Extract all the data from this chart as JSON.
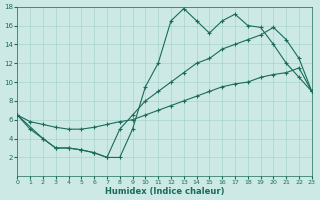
{
  "xlabel": "Humidex (Indice chaleur)",
  "bg_color": "#cce9e5",
  "line_color": "#1a6b5a",
  "grid_color": "#aad4cf",
  "xmin": 0,
  "xmax": 23,
  "ymin": 0,
  "ymax": 18,
  "yticks": [
    2,
    4,
    6,
    8,
    10,
    12,
    14,
    16,
    18
  ],
  "xticks": [
    0,
    1,
    2,
    3,
    4,
    5,
    6,
    7,
    8,
    9,
    10,
    11,
    12,
    13,
    14,
    15,
    16,
    17,
    18,
    19,
    20,
    21,
    22,
    23
  ],
  "line1_x": [
    0,
    1,
    2,
    3,
    4,
    5,
    6,
    7,
    8,
    9,
    10,
    11,
    12,
    13,
    14,
    15,
    16,
    17,
    18,
    19,
    20,
    21,
    22,
    23
  ],
  "line1_y": [
    6.5,
    5.0,
    4.0,
    3.0,
    3.0,
    2.8,
    2.5,
    2.0,
    2.0,
    5.0,
    9.5,
    12.0,
    16.5,
    17.8,
    16.5,
    15.2,
    16.5,
    17.2,
    16.0,
    15.8,
    14.0,
    12.0,
    10.5,
    9.0
  ],
  "line2_x": [
    0,
    1,
    2,
    3,
    4,
    5,
    6,
    7,
    8,
    9,
    10,
    11,
    12,
    13,
    14,
    15,
    16,
    17,
    18,
    19,
    20,
    21,
    22,
    23
  ],
  "line2_y": [
    6.5,
    5.8,
    5.5,
    5.2,
    5.0,
    5.0,
    5.2,
    5.5,
    5.8,
    6.0,
    6.5,
    7.0,
    7.5,
    8.0,
    8.5,
    9.0,
    9.5,
    9.8,
    10.0,
    10.5,
    10.8,
    11.0,
    11.5,
    9.0
  ],
  "line3_x": [
    0,
    2,
    3,
    4,
    5,
    6,
    7,
    8,
    9,
    10,
    11,
    12,
    13,
    14,
    15,
    16,
    17,
    18,
    19,
    20,
    21,
    22,
    23
  ],
  "line3_y": [
    6.5,
    4.0,
    3.0,
    3.0,
    2.8,
    2.5,
    2.0,
    5.0,
    6.5,
    8.0,
    9.0,
    10.0,
    11.0,
    12.0,
    12.5,
    13.5,
    14.0,
    14.5,
    15.0,
    15.8,
    14.5,
    12.5,
    9.0
  ]
}
